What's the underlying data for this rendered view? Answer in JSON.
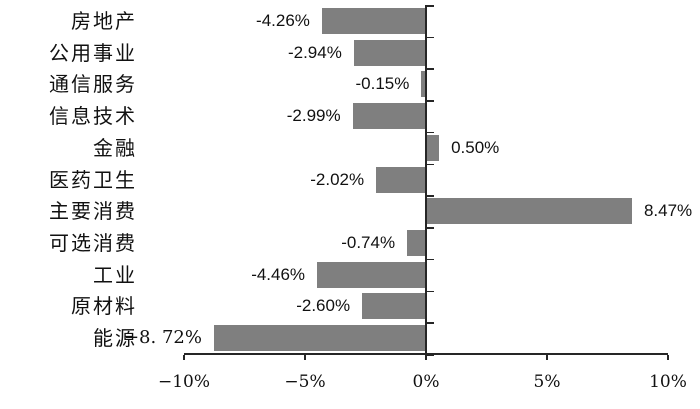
{
  "chart_data": {
    "type": "bar",
    "orientation": "horizontal",
    "title": "",
    "xlabel": "",
    "ylabel": "",
    "categories": [
      "房地产",
      "公用事业",
      "通信服务",
      "信息技术",
      "金融",
      "医药卫生",
      "主要消费",
      "可选消费",
      "工业",
      "原材料",
      "能源"
    ],
    "values": [
      -4.26,
      -2.94,
      -0.15,
      -2.99,
      0.5,
      -2.02,
      8.47,
      -0.74,
      -4.46,
      -2.6,
      -8.72
    ],
    "value_labels": [
      "-4.26%",
      "-2.94%",
      "-0.15%",
      "-2.99%",
      "0.50%",
      "-2.02%",
      "8.47%",
      "-0.74%",
      "-4.46%",
      "-2.60%",
      "−8. 72%"
    ],
    "x_ticks": [
      -10,
      -5,
      0,
      5,
      10
    ],
    "x_tick_labels": [
      "−10%",
      "−5%",
      "0%",
      "5%",
      "10%"
    ],
    "xlim": [
      -10,
      10
    ],
    "grid": false,
    "legend": false,
    "bar_color": "#7f7f7f",
    "axis_color": "#262626",
    "text_color": "#111111"
  }
}
